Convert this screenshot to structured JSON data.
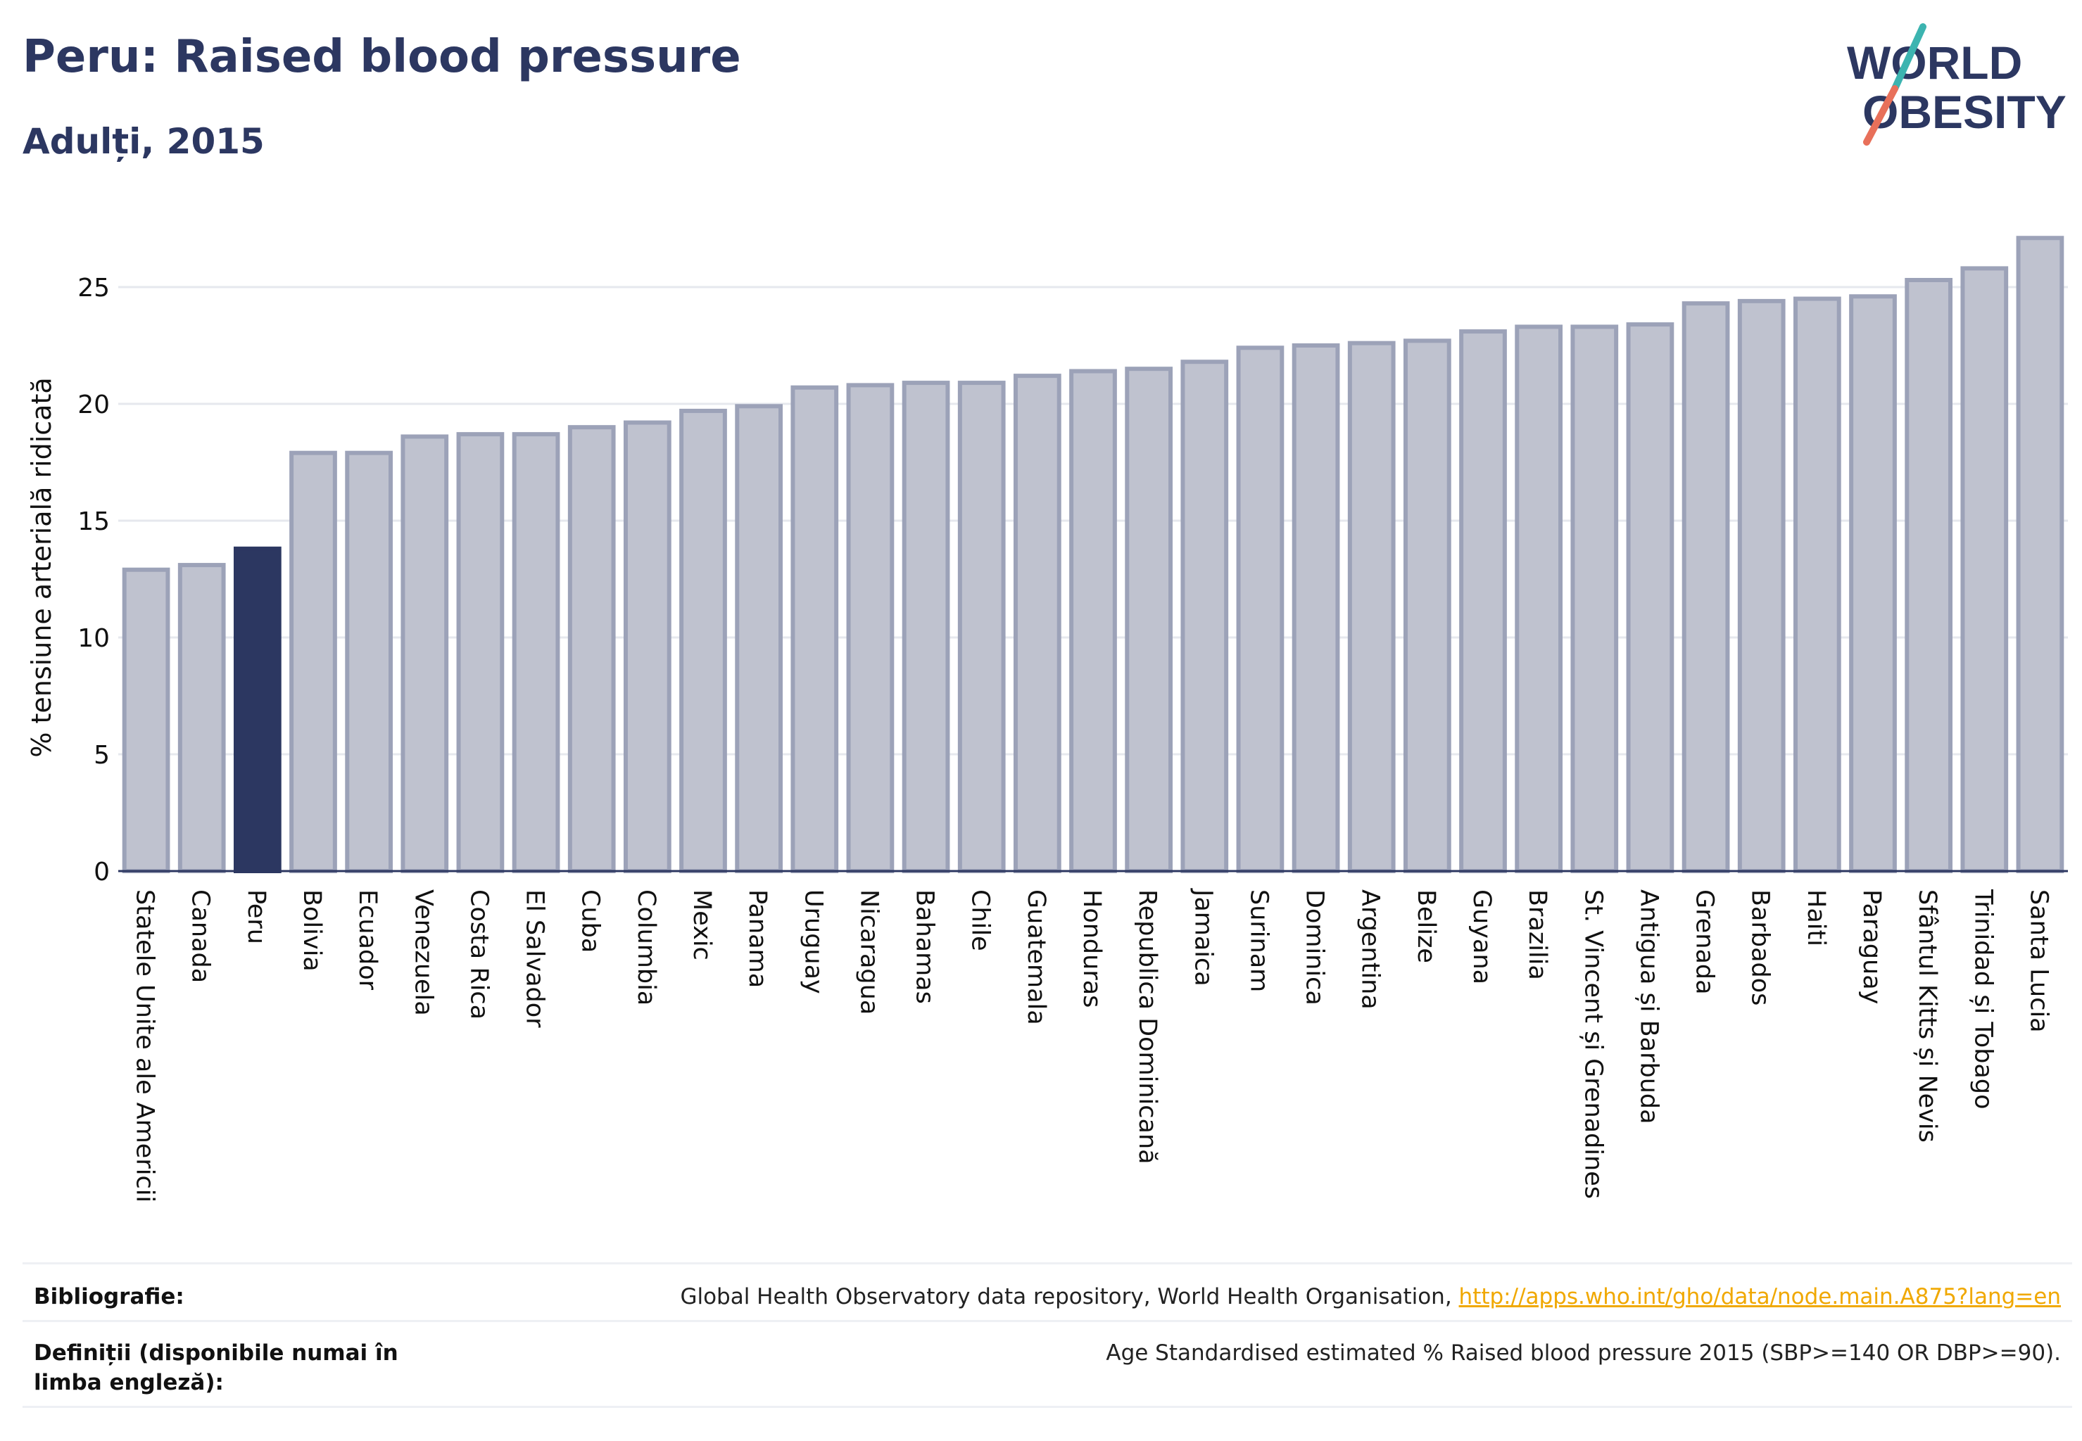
{
  "header": {
    "title": "Peru: Raised blood pressure",
    "subtitle": "Adulți, 2015"
  },
  "logo": {
    "line1": "WORLD",
    "line2": "OBESITY"
  },
  "colors": {
    "highlight": "#2c3761",
    "bar_fill": "#bfc2cf",
    "bar_stroke": "#9ca2b8",
    "grid": "#e6e8ee",
    "logo_text": "#2c3761",
    "logo_slash_top": "#3cb4b0",
    "logo_slash_bottom": "#e8705a"
  },
  "chart_data": {
    "type": "bar",
    "ylabel": "% tensiune arterială ridicată",
    "xlabel": "",
    "ylim": [
      0,
      27.8
    ],
    "yticks": [
      0,
      5,
      10,
      15,
      20,
      25
    ],
    "grid": true,
    "highlight_category": "Peru",
    "categories": [
      "Statele Unite ale Americii",
      "Canada",
      "Peru",
      "Bolivia",
      "Ecuador",
      "Venezuela",
      "Costa Rica",
      "El Salvador",
      "Cuba",
      "Columbia",
      "Mexic",
      "Panama",
      "Uruguay",
      "Nicaragua",
      "Bahamas",
      "Chile",
      "Guatemala",
      "Honduras",
      "Republica Dominicană",
      "Jamaica",
      "Surinam",
      "Dominica",
      "Argentina",
      "Belize",
      "Guyana",
      "Brazilia",
      "St. Vincent și Grenadines",
      "Antigua și Barbuda",
      "Grenada",
      "Barbados",
      "Haiti",
      "Paraguay",
      "Sfântul Kitts și Nevis",
      "Trinidad și Tobago",
      "Santa Lucia"
    ],
    "values": [
      12.9,
      13.1,
      13.8,
      17.9,
      17.9,
      18.6,
      18.7,
      18.7,
      19.0,
      19.2,
      19.7,
      19.9,
      20.7,
      20.8,
      20.9,
      20.9,
      21.2,
      21.4,
      21.5,
      21.8,
      22.4,
      22.5,
      22.6,
      22.7,
      23.1,
      23.3,
      23.3,
      23.4,
      24.3,
      24.4,
      24.5,
      24.6,
      25.3,
      25.8,
      27.1
    ]
  },
  "footer": {
    "bibliography_label": "Bibliografie:",
    "bibliography_text": "Global Health Observatory data repository, World Health Organisation, ",
    "bibliography_link": "http://apps.who.int/gho/data/node.main.A875?lang=en",
    "definitions_label": "Definiții (disponibile numai în limba engleză):",
    "definitions_text": "Age Standardised estimated % Raised blood pressure 2015 (SBP>=140 OR DBP>=90)."
  }
}
